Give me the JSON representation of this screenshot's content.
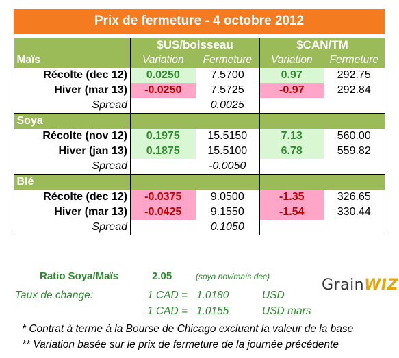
{
  "title": "Prix de fermeture - 4 octobre 2012",
  "headers": {
    "usd": "$US/boisseau",
    "cad": "$CAN/TM",
    "variation": "Variation",
    "fermeture": "Fermeture"
  },
  "sections": [
    {
      "name": "Maïs",
      "rows": [
        {
          "label": "Récolte (dec 12)",
          "usd_var": "0.0250",
          "usd_close": "7.5700",
          "cad_var": "0.97",
          "cad_close": "292.75"
        },
        {
          "label": "Hiver (mar 13)",
          "usd_var": "-0.0250",
          "usd_close": "7.5725",
          "cad_var": "-0.97",
          "cad_close": "292.84"
        }
      ],
      "spread_label": "Spread",
      "spread": "0.0025"
    },
    {
      "name": "Soya",
      "rows": [
        {
          "label": "Récolte (nov 12)",
          "usd_var": "0.1975",
          "usd_close": "15.5150",
          "cad_var": "7.13",
          "cad_close": "560.00"
        },
        {
          "label": "Hiver (jan 13)",
          "usd_var": "0.1875",
          "usd_close": "15.5100",
          "cad_var": "6.78",
          "cad_close": "559.82"
        }
      ],
      "spread_label": "Spread",
      "spread": "-0.0050"
    },
    {
      "name": "Blé",
      "rows": [
        {
          "label": "Récolte (dec 12)",
          "usd_var": "-0.0375",
          "usd_close": "9.0500",
          "cad_var": "-1.35",
          "cad_close": "326.65"
        },
        {
          "label": "Hiver (mar 13)",
          "usd_var": "-0.0425",
          "usd_close": "9.1550",
          "cad_var": "-1.54",
          "cad_close": "330.44"
        }
      ],
      "spread_label": "Spread",
      "spread": "0.1050"
    }
  ],
  "ratio": {
    "label": "Ratio Soya/Maïs",
    "value": "2.05",
    "note": "(soya nov/maïs dec)"
  },
  "exchange": {
    "label": "Taux de change:",
    "rates": [
      {
        "expr": "1 CAD =",
        "value": "1.0180",
        "unit": "USD"
      },
      {
        "expr": "1 CAD =",
        "value": "1.0155",
        "unit": "USD mars"
      }
    ]
  },
  "logo": {
    "part1": "Grain",
    "part2": "WIZ"
  },
  "footnotes": [
    "* Contrat à terme à la Bourse de Chicago excluant la valeur de la base",
    "** Variation basée sur le prix de fermeture de la journée précédente"
  ],
  "colors": {
    "title_bg": "#f47b20",
    "section_bg": "#9bbb59",
    "positive_bg": "#d9f7d3",
    "positive_text": "#2e8b2e",
    "negative_bg": "#ffa5c7",
    "negative_text": "#c00000"
  }
}
